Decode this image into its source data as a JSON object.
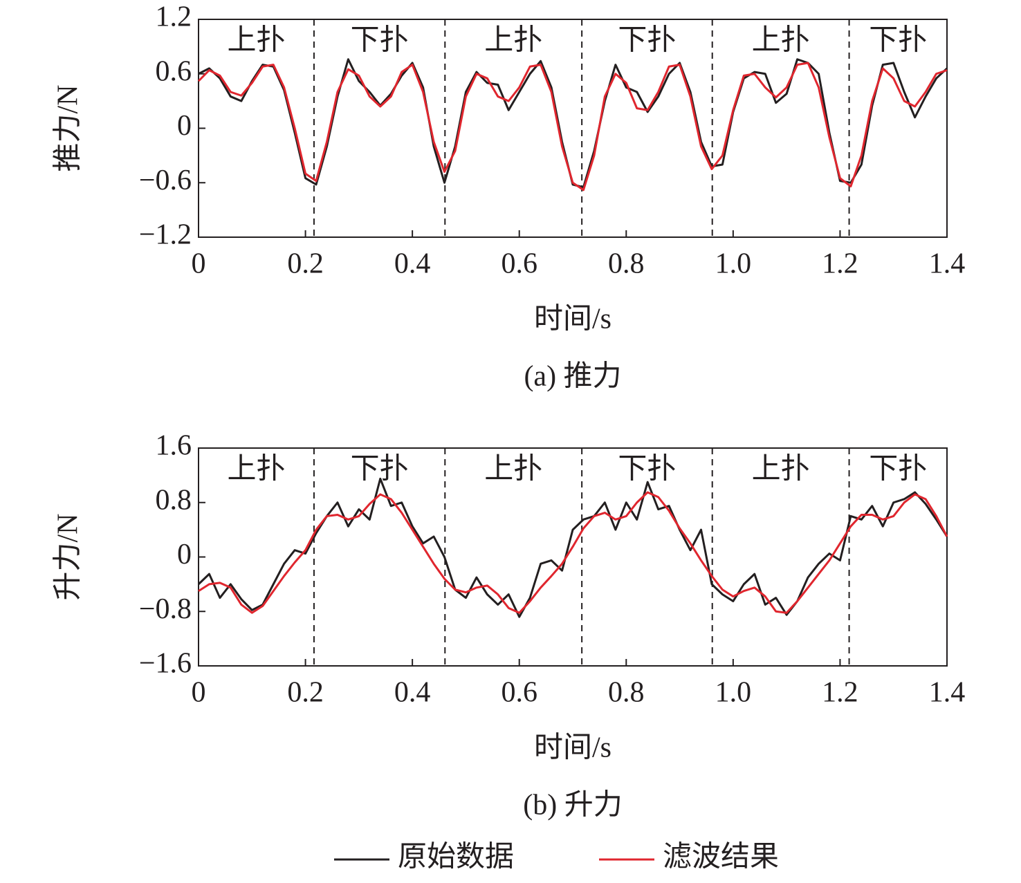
{
  "chart_data": [
    {
      "type": "line",
      "subtitle": "(a) 推力",
      "xlabel": "时间/s",
      "ylabel": "推力/N",
      "x": [
        0,
        0.02,
        0.04,
        0.06,
        0.08,
        0.1,
        0.12,
        0.14,
        0.16,
        0.18,
        0.2,
        0.22,
        0.24,
        0.26,
        0.28,
        0.3,
        0.32,
        0.34,
        0.36,
        0.38,
        0.4,
        0.42,
        0.44,
        0.46,
        0.48,
        0.5,
        0.52,
        0.54,
        0.56,
        0.58,
        0.6,
        0.62,
        0.64,
        0.66,
        0.68,
        0.7,
        0.72,
        0.74,
        0.76,
        0.78,
        0.8,
        0.82,
        0.84,
        0.86,
        0.88,
        0.9,
        0.92,
        0.94,
        0.96,
        0.98,
        1,
        1.02,
        1.04,
        1.06,
        1.08,
        1.1,
        1.12,
        1.14,
        1.16,
        1.18,
        1.2,
        1.22,
        1.24,
        1.26,
        1.28,
        1.3,
        1.32,
        1.34,
        1.36,
        1.38,
        1.4
      ],
      "series": [
        {
          "color": "#231f20",
          "values": [
            0.6,
            0.66,
            0.55,
            0.35,
            0.3,
            0.52,
            0.7,
            0.68,
            0.42,
            -0.05,
            -0.55,
            -0.62,
            -0.2,
            0.35,
            0.76,
            0.52,
            0.4,
            0.25,
            0.38,
            0.58,
            0.72,
            0.45,
            -0.2,
            -0.6,
            -0.2,
            0.4,
            0.62,
            0.5,
            0.48,
            0.2,
            0.4,
            0.6,
            0.74,
            0.45,
            -0.15,
            -0.62,
            -0.65,
            -0.25,
            0.3,
            0.7,
            0.45,
            0.4,
            0.18,
            0.35,
            0.6,
            0.72,
            0.4,
            -0.15,
            -0.42,
            -0.4,
            0.18,
            0.55,
            0.62,
            0.6,
            0.28,
            0.38,
            0.76,
            0.72,
            0.6,
            -0.05,
            -0.58,
            -0.6,
            -0.4,
            0.25,
            0.7,
            0.72,
            0.4,
            0.12,
            0.35,
            0.55,
            0.66
          ]
        },
        {
          "color": "#e0262e",
          "values": [
            0.52,
            0.64,
            0.58,
            0.4,
            0.36,
            0.5,
            0.68,
            0.7,
            0.45,
            0,
            -0.5,
            -0.58,
            -0.15,
            0.4,
            0.65,
            0.58,
            0.35,
            0.24,
            0.35,
            0.62,
            0.7,
            0.4,
            -0.15,
            -0.48,
            -0.25,
            0.35,
            0.6,
            0.55,
            0.35,
            0.3,
            0.45,
            0.68,
            0.7,
            0.4,
            -0.2,
            -0.6,
            -0.68,
            -0.3,
            0.35,
            0.6,
            0.5,
            0.22,
            0.2,
            0.4,
            0.68,
            0.7,
            0.35,
            -0.2,
            -0.45,
            -0.3,
            0.2,
            0.58,
            0.6,
            0.45,
            0.34,
            0.45,
            0.7,
            0.72,
            0.45,
            -0.1,
            -0.55,
            -0.64,
            -0.3,
            0.3,
            0.66,
            0.55,
            0.3,
            0.24,
            0.4,
            0.6,
            0.64
          ]
        }
      ],
      "xlim": [
        0,
        1.4
      ],
      "ylim": [
        -1.2,
        1.2
      ],
      "xticks": [
        0,
        0.2,
        0.4,
        0.6,
        0.8,
        {
          "value": 1,
          "label": "1.0"
        },
        1.2,
        1.4
      ],
      "yticks": [
        {
          "value": -1.2,
          "label": "−1.2"
        },
        {
          "value": -0.6,
          "label": "−0.6"
        },
        0,
        0.6,
        1.2
      ],
      "phase_boundaries": [
        0.216,
        0.461,
        0.717,
        0.961,
        1.217
      ],
      "phase_labels": [
        "上扑",
        "下扑",
        "上扑",
        "下扑",
        "上扑",
        "下扑"
      ]
    },
    {
      "type": "line",
      "subtitle": "(b) 升力",
      "xlabel": "时间/s",
      "ylabel": "升力/N",
      "x": [
        0,
        0.02,
        0.04,
        0.06,
        0.08,
        0.1,
        0.12,
        0.14,
        0.16,
        0.18,
        0.2,
        0.22,
        0.24,
        0.26,
        0.28,
        0.3,
        0.32,
        0.34,
        0.36,
        0.38,
        0.4,
        0.42,
        0.44,
        0.46,
        0.48,
        0.5,
        0.52,
        0.54,
        0.56,
        0.58,
        0.6,
        0.62,
        0.64,
        0.66,
        0.68,
        0.7,
        0.72,
        0.74,
        0.76,
        0.78,
        0.8,
        0.82,
        0.84,
        0.86,
        0.88,
        0.9,
        0.92,
        0.94,
        0.96,
        0.98,
        1,
        1.02,
        1.04,
        1.06,
        1.08,
        1.1,
        1.12,
        1.14,
        1.16,
        1.18,
        1.2,
        1.22,
        1.24,
        1.26,
        1.28,
        1.3,
        1.32,
        1.34,
        1.36,
        1.38,
        1.4
      ],
      "series": [
        {
          "name": "原始数据",
          "color": "#231f20",
          "values": [
            -0.4,
            -0.25,
            -0.6,
            -0.4,
            -0.62,
            -0.78,
            -0.7,
            -0.4,
            -0.1,
            0.1,
            0.05,
            0.35,
            0.6,
            0.8,
            0.45,
            0.7,
            0.55,
            1.15,
            0.75,
            0.8,
            0.45,
            0.2,
            0.3,
            0,
            -0.48,
            -0.6,
            -0.3,
            -0.55,
            -0.7,
            -0.55,
            -0.88,
            -0.6,
            -0.1,
            -0.05,
            -0.2,
            0.4,
            0.55,
            0.6,
            0.8,
            0.4,
            0.8,
            0.55,
            1.1,
            0.7,
            0.75,
            0.4,
            0.1,
            0.4,
            -0.4,
            -0.55,
            -0.65,
            -0.4,
            -0.25,
            -0.7,
            -0.6,
            -0.85,
            -0.65,
            -0.3,
            -0.1,
            0.05,
            -0.05,
            0.6,
            0.55,
            0.75,
            0.45,
            0.8,
            0.85,
            0.95,
            0.78,
            0.55,
            0.3
          ]
        },
        {
          "name": "滤波结果",
          "color": "#e0262e",
          "values": [
            -0.5,
            -0.4,
            -0.38,
            -0.45,
            -0.7,
            -0.82,
            -0.72,
            -0.5,
            -0.28,
            -0.08,
            0.1,
            0.4,
            0.6,
            0.62,
            0.55,
            0.6,
            0.78,
            0.92,
            0.85,
            0.65,
            0.4,
            0.15,
            -0.1,
            -0.32,
            -0.48,
            -0.52,
            -0.45,
            -0.42,
            -0.55,
            -0.75,
            -0.82,
            -0.65,
            -0.45,
            -0.28,
            -0.1,
            0.15,
            0.42,
            0.6,
            0.65,
            0.55,
            0.6,
            0.8,
            0.95,
            0.88,
            0.68,
            0.42,
            0.2,
            -0.05,
            -0.28,
            -0.48,
            -0.58,
            -0.5,
            -0.45,
            -0.58,
            -0.8,
            -0.82,
            -0.65,
            -0.45,
            -0.25,
            -0.05,
            0.2,
            0.45,
            0.62,
            0.62,
            0.55,
            0.6,
            0.8,
            0.92,
            0.85,
            0.6,
            0.3
          ]
        }
      ],
      "xlim": [
        0,
        1.4
      ],
      "ylim": [
        -1.6,
        1.6
      ],
      "xticks": [
        0,
        0.2,
        0.4,
        0.6,
        0.8,
        {
          "value": 1,
          "label": "1.0"
        },
        1.2,
        1.4
      ],
      "yticks": [
        {
          "value": -1.6,
          "label": "−1.6"
        },
        {
          "value": -0.8,
          "label": "−0.8"
        },
        0,
        0.8,
        1.6
      ],
      "phase_boundaries": [
        0.216,
        0.461,
        0.717,
        0.961,
        1.217
      ],
      "phase_labels": [
        "上扑",
        "下扑",
        "上扑",
        "下扑",
        "上扑",
        "下扑"
      ],
      "legend": "bottom"
    }
  ]
}
